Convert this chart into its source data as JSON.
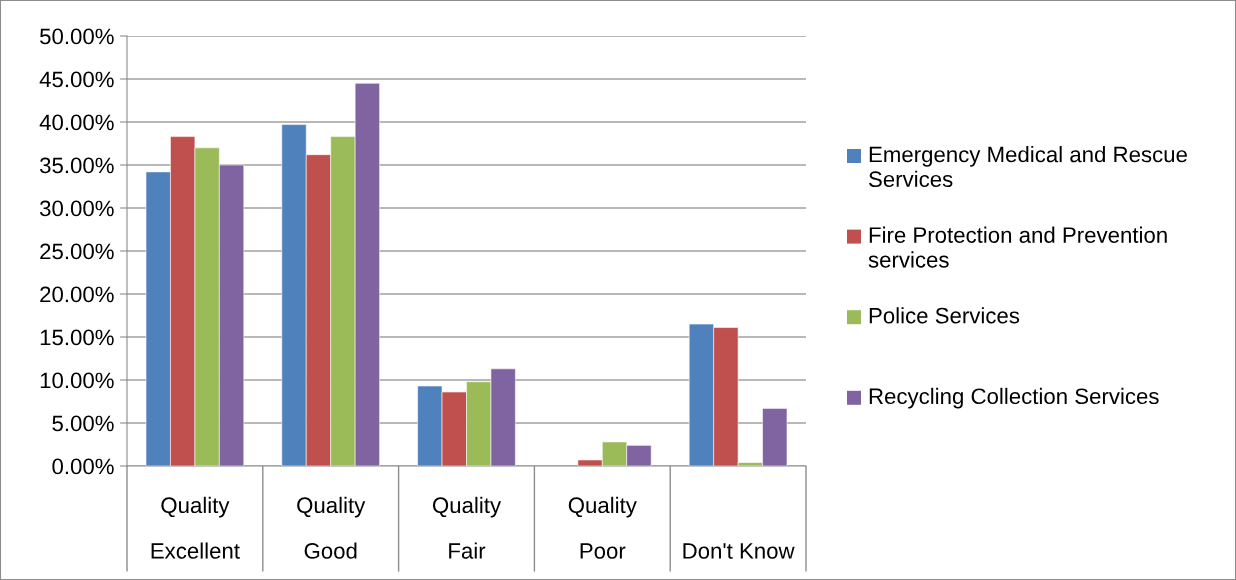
{
  "chart_data": {
    "type": "bar",
    "categories": [
      "Quality\nExcellent",
      "Quality\nGood",
      "Quality\nFair",
      "Quality\nPoor",
      "Don't Know"
    ],
    "series": [
      {
        "name": "Emergency Medical and Rescue Services",
        "color": "#4f81bd",
        "values": [
          34.2,
          39.7,
          9.3,
          null,
          16.5
        ]
      },
      {
        "name": "Fire Protection and Prevention services",
        "color": "#c0504d",
        "values": [
          38.3,
          36.2,
          8.6,
          0.7,
          16.1
        ]
      },
      {
        "name": "Police Services",
        "color": "#9bbb59",
        "values": [
          37.0,
          38.3,
          9.8,
          2.8,
          0.4
        ]
      },
      {
        "name": "Recycling Collection Services",
        "color": "#8064a2",
        "values": [
          35.0,
          44.5,
          11.3,
          2.4,
          6.7
        ]
      }
    ],
    "ylim": [
      0,
      50
    ],
    "yticks": [
      {
        "value": 0,
        "label": "0.00%"
      },
      {
        "value": 5,
        "label": "5.00%"
      },
      {
        "value": 10,
        "label": "10.00%"
      },
      {
        "value": 15,
        "label": "15.00%"
      },
      {
        "value": 20,
        "label": "20.00%"
      },
      {
        "value": 25,
        "label": "25.00%"
      },
      {
        "value": 30,
        "label": "30.00%"
      },
      {
        "value": 35,
        "label": "35.00%"
      },
      {
        "value": 40,
        "label": "40.00%"
      },
      {
        "value": 45,
        "label": "45.00%"
      },
      {
        "value": 50,
        "label": "50.00%"
      }
    ],
    "grid": "y",
    "legend": "right"
  }
}
